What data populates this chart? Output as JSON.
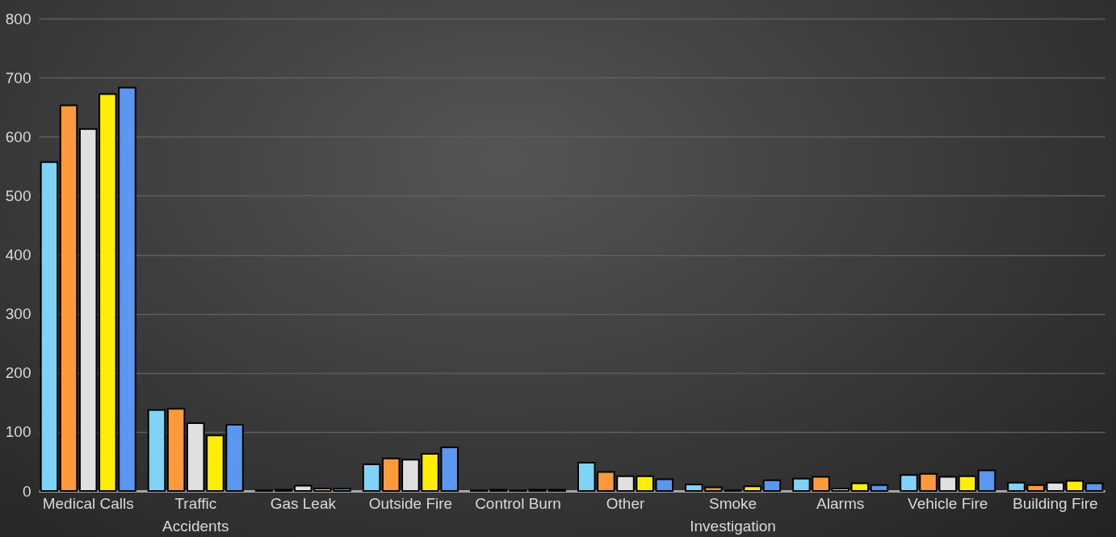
{
  "chart_data": {
    "type": "bar",
    "categories": [
      "Medical Calls",
      "Traffic Accidents",
      "Gas Leak",
      "Outside Fire",
      "Control Burn",
      "Other",
      "Smoke Investigation",
      "Alarms",
      "Vehicle Fire",
      "Building Fire"
    ],
    "series": [
      {
        "color": "#7fd3f7",
        "values": [
          557,
          137,
          1,
          45,
          1,
          48,
          11,
          21,
          27,
          14
        ]
      },
      {
        "color": "#ff9a3c",
        "values": [
          653,
          139,
          2,
          55,
          2,
          32,
          6,
          24,
          29,
          10
        ]
      },
      {
        "color": "#e0e0e0",
        "values": [
          613,
          115,
          9,
          53,
          1,
          25,
          1,
          4,
          24,
          14
        ]
      },
      {
        "color": "#ffee00",
        "values": [
          672,
          94,
          4,
          63,
          2,
          25,
          8,
          13,
          25,
          17
        ]
      },
      {
        "color": "#5b97f0",
        "values": [
          683,
          112,
          4,
          74,
          2,
          20,
          18,
          10,
          35,
          13
        ]
      }
    ],
    "ylim": [
      0,
      800
    ],
    "yticks": [
      0,
      100,
      200,
      300,
      400,
      500,
      600,
      700,
      800
    ],
    "grid": "y",
    "legend": false
  }
}
